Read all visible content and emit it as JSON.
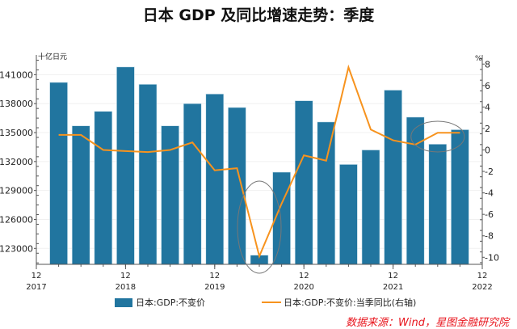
{
  "chart_data": {
    "type": "bar+line",
    "title": "日本 GDP 及同比增速走势：季度",
    "left_unit": "十亿日元",
    "right_unit": "%",
    "left_ylim": [
      121300,
      142800
    ],
    "left_ticks": [
      123000,
      126000,
      129000,
      132000,
      135000,
      138000,
      141000
    ],
    "right_ylim": [
      -10.8,
      8.7
    ],
    "right_ticks": [
      -10,
      -8,
      -6,
      -4,
      -2,
      0,
      2,
      4,
      6,
      8
    ],
    "x_ticks": [
      {
        "month": "12",
        "year": "2017"
      },
      {
        "month": "12",
        "year": "2018"
      },
      {
        "month": "12",
        "year": "2019"
      },
      {
        "month": "12",
        "year": "2020"
      },
      {
        "month": "12",
        "year": "2021"
      },
      {
        "month": "12",
        "year": "2022"
      }
    ],
    "categories": [
      "2018Q1",
      "2018Q2",
      "2018Q3",
      "2018Q4",
      "2019Q1",
      "2019Q2",
      "2019Q3",
      "2019Q4",
      "2020Q1",
      "2020Q2",
      "2020Q3",
      "2020Q4",
      "2021Q1",
      "2021Q2",
      "2021Q3",
      "2021Q4",
      "2022Q1",
      "2022Q2",
      "2022Q3"
    ],
    "series": [
      {
        "name": "日本:GDP:不变价",
        "type": "bar",
        "axis": "left",
        "color": "#21759f",
        "values": [
          140200,
          135700,
          137200,
          141800,
          140000,
          135700,
          138000,
          139000,
          137600,
          122300,
          130900,
          138300,
          136100,
          131700,
          133200,
          139400,
          136600,
          133800,
          135300
        ]
      },
      {
        "name": "日本:GDP:不变价:当季同比(右轴)",
        "type": "line",
        "axis": "right",
        "color": "#f7931e",
        "values": [
          1.4,
          1.4,
          0.0,
          -0.1,
          -0.2,
          0.0,
          0.7,
          -1.9,
          -1.7,
          -9.9,
          -5.0,
          -0.5,
          -1.0,
          7.7,
          1.9,
          0.9,
          0.5,
          1.6,
          1.6
        ]
      }
    ],
    "annotations": [
      "ellipse around 2020Q2",
      "ellipse around 2022Q1-Q3"
    ],
    "grid": "horizontal light",
    "legend": "bottom"
  },
  "source": "数据来源：Wind，星图金融研究院"
}
